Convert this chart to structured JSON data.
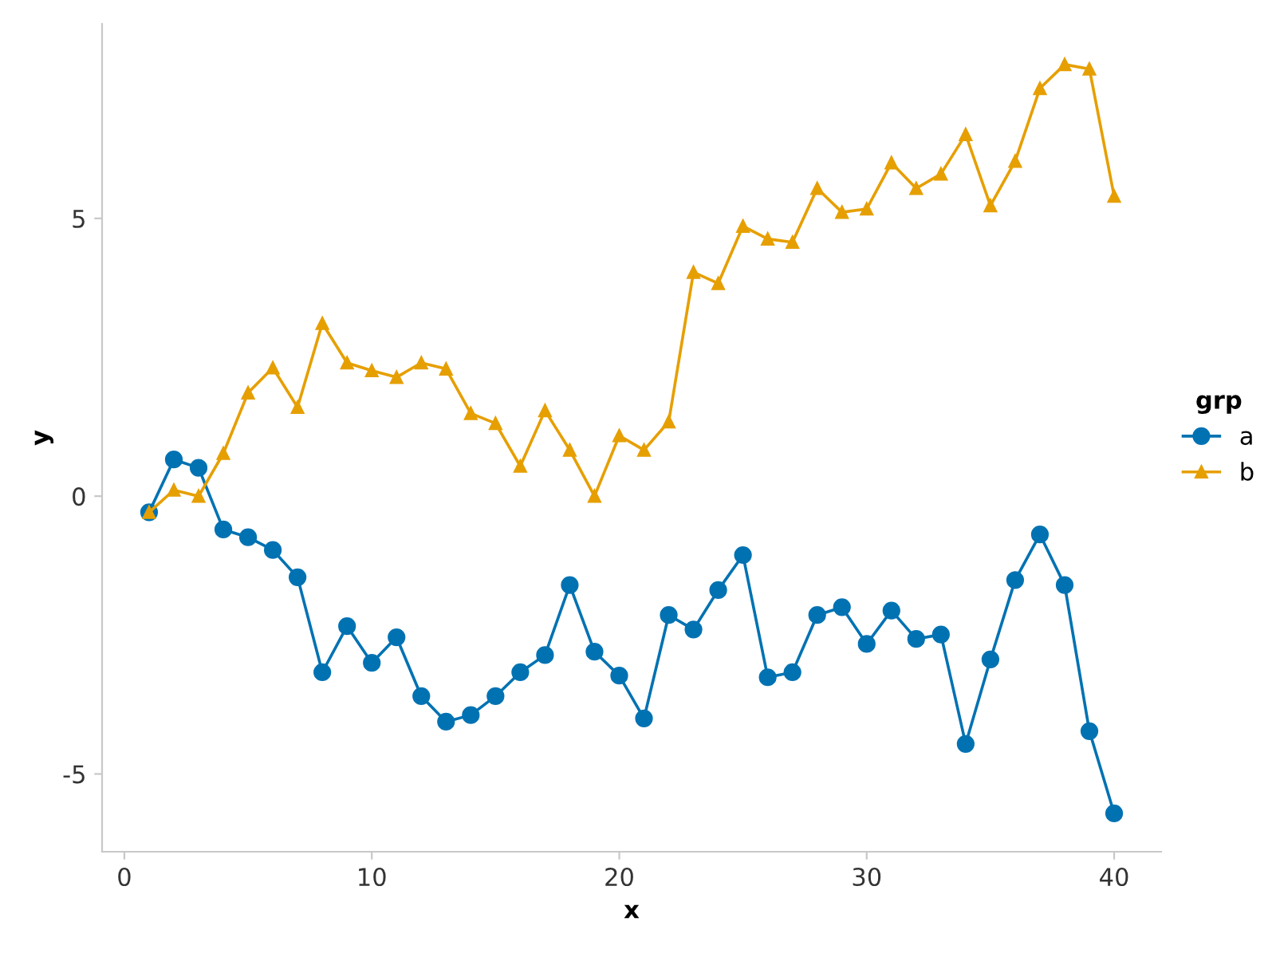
{
  "chart_data": {
    "type": "line",
    "xlabel": "x",
    "ylabel": "y",
    "legend_title": "grp",
    "legend": "right",
    "grid": false,
    "x": [
      1,
      2,
      3,
      4,
      5,
      6,
      7,
      8,
      9,
      10,
      11,
      12,
      13,
      14,
      15,
      16,
      17,
      18,
      19,
      20,
      21,
      22,
      23,
      24,
      25,
      26,
      27,
      28,
      29,
      30,
      31,
      32,
      33,
      34,
      35,
      36,
      37,
      38,
      39,
      40
    ],
    "xlim": [
      -0.9,
      41.9
    ],
    "xticks": [
      0,
      10,
      20,
      30,
      40
    ],
    "ylim": [
      -6.4,
      8.5
    ],
    "yticks": [
      -5,
      0,
      5
    ],
    "series": [
      {
        "name": "a",
        "color": "#0072b2",
        "marker": "circle",
        "values": [
          -0.29,
          0.66,
          0.51,
          -0.6,
          -0.74,
          -0.97,
          -1.46,
          -3.17,
          -2.34,
          -3.0,
          -2.54,
          -3.6,
          -4.06,
          -3.94,
          -3.6,
          -3.17,
          -2.86,
          -1.6,
          -2.8,
          -3.23,
          -4.0,
          -2.14,
          -2.4,
          -1.69,
          -1.06,
          -3.26,
          -3.17,
          -2.14,
          -2.0,
          -2.66,
          -2.06,
          -2.57,
          -2.49,
          -4.46,
          -2.94,
          -1.51,
          -0.69,
          -1.6,
          -4.23,
          -5.71
        ]
      },
      {
        "name": "b",
        "color": "#e69f00",
        "marker": "triangle",
        "values": [
          -0.29,
          0.11,
          0.0,
          0.77,
          1.86,
          2.31,
          1.6,
          3.11,
          2.4,
          2.26,
          2.14,
          2.4,
          2.29,
          1.49,
          1.31,
          0.54,
          1.54,
          0.83,
          0.0,
          1.09,
          0.83,
          1.34,
          4.03,
          3.83,
          4.86,
          4.63,
          4.57,
          5.54,
          5.11,
          5.17,
          6.0,
          5.54,
          5.8,
          6.51,
          5.23,
          6.03,
          7.34,
          7.77,
          7.69,
          5.4
        ]
      }
    ]
  }
}
